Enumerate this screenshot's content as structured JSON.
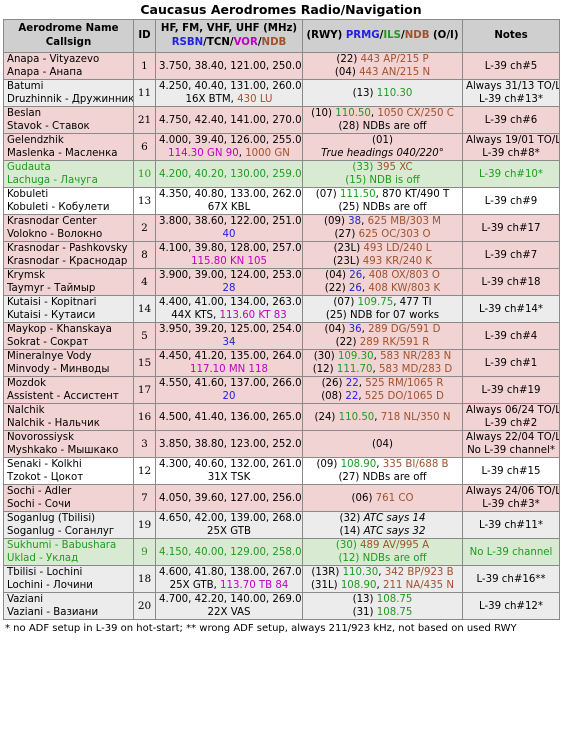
{
  "title": "Caucasus Aerodromes Radio/Navigation",
  "header": {
    "name_l1": "Aerodrome Name",
    "name_l2": "Callsign",
    "id": "ID",
    "freq_l1": "HF, FM, VHF, UHF (MHz)",
    "freq_rsbn": "RSBN",
    "freq_tcn": "TCN",
    "freq_vor": "VOR",
    "freq_ndb": "NDB",
    "nav_rwy": "(RWY)",
    "nav_prmg": "PRMG",
    "nav_ils": "ILS",
    "nav_ndb": "NDB",
    "nav_oi": "(O/I)",
    "notes": "Notes",
    "slash": "/"
  },
  "rows": [
    {
      "bg": "pink",
      "name1": "Anapa - Vityazevo",
      "name2": "Anapa - Анапа",
      "id": "1",
      "f1": [
        {
          "t": "3.750, 38.40, 121.00, 250.00"
        }
      ],
      "f2": [],
      "n1": [
        {
          "t": "(22) "
        },
        {
          "t": "443 AP/215 P",
          "c": "brown"
        }
      ],
      "n2": [
        {
          "t": "(04) "
        },
        {
          "t": "443 AN/215 N",
          "c": "brown"
        }
      ],
      "no1": "L-39 ch#5",
      "no2": ""
    },
    {
      "bg": "gray",
      "name1": "Batumi",
      "name2": "Druzhinnik - Дружинник",
      "id": "11",
      "f1": [
        {
          "t": "4.250, 40.40, 131.00, 260.00"
        }
      ],
      "f2": [
        {
          "t": "16X BTM, "
        },
        {
          "t": "430 LU",
          "c": "brown"
        }
      ],
      "n1": [
        {
          "t": "(13) "
        },
        {
          "t": "110.30",
          "c": "green"
        }
      ],
      "n2": [],
      "no1": "Always 31/13 TO/L",
      "no2": "L-39 ch#13*"
    },
    {
      "bg": "pink",
      "name1": "Beslan",
      "name2": "Stavok - Ставок",
      "id": "21",
      "f1": [
        {
          "t": "4.750, 42.40, 141.00, 270.00"
        }
      ],
      "f2": [],
      "n1": [
        {
          "t": "(10) "
        },
        {
          "t": "110.50",
          "c": "green"
        },
        {
          "t": ", "
        },
        {
          "t": "1050 CX/250 C",
          "c": "brown"
        }
      ],
      "n2": [
        {
          "t": "(28) NDBs are off"
        }
      ],
      "no1": "L-39 ch#6",
      "no2": ""
    },
    {
      "bg": "pink",
      "name1": "Gelendzhik",
      "name2": "Maslenka - Масленка",
      "id": "6",
      "f1": [
        {
          "t": "4.000, 39.40, 126.00, 255.00"
        }
      ],
      "f2": [
        {
          "t": "114.30 GN 90",
          "c": "magenta"
        },
        {
          "t": ", "
        },
        {
          "t": "1000 GN",
          "c": "brown"
        }
      ],
      "n1": [
        {
          "t": "(01)"
        }
      ],
      "n2": [
        {
          "t": "True headings 040/220°",
          "c": "italic"
        }
      ],
      "no1": "Always 19/01 TO/L",
      "no2": "L-39 ch#8*"
    },
    {
      "bg": "green",
      "name1": "Gudauta",
      "name2": "Lachuga - Лачуга",
      "id": "10",
      "f1": [
        {
          "t": "4.200, 40.20, 130.00, 259.00"
        }
      ],
      "f2": [],
      "n1": [
        {
          "t": "(33) "
        },
        {
          "t": "395 XC",
          "c": "brown"
        }
      ],
      "n2": [
        {
          "t": "(15) NDB is off"
        }
      ],
      "no1": "L-39 ch#10*",
      "no2": ""
    },
    {
      "bg": "white",
      "name1": "Kobuleti",
      "name2": "Kobuleti - Кобулети",
      "id": "13",
      "f1": [
        {
          "t": "4.350, 40.80, 133.00, 262.00"
        }
      ],
      "f2": [
        {
          "t": "67X KBL"
        }
      ],
      "n1": [
        {
          "t": "(07) "
        },
        {
          "t": "111.50",
          "c": "green"
        },
        {
          "t": ", 870 KT/490 T"
        }
      ],
      "n2": [
        {
          "t": "(25) NDBs are off"
        }
      ],
      "no1": "L-39 ch#9",
      "no2": ""
    },
    {
      "bg": "pink",
      "name1": "Krasnodar Center",
      "name2": "Volokno - Волокно",
      "id": "2",
      "f1": [
        {
          "t": "3.800, 38.60, 122.00, 251.00"
        }
      ],
      "f2": [
        {
          "t": "40",
          "c": "blue"
        }
      ],
      "n1": [
        {
          "t": "(09) "
        },
        {
          "t": "38",
          "c": "blue"
        },
        {
          "t": ", "
        },
        {
          "t": "625 MB/303 M",
          "c": "brown"
        }
      ],
      "n2": [
        {
          "t": "(27) "
        },
        {
          "t": "625 OC/303 O",
          "c": "brown"
        }
      ],
      "no1": "L-39 ch#17",
      "no2": ""
    },
    {
      "bg": "pink",
      "name1": "Krasnodar - Pashkovsky",
      "name2": "Krasnodar - Краснодар",
      "id": "8",
      "f1": [
        {
          "t": "4.100, 39.80, 128.00, 257.00"
        }
      ],
      "f2": [
        {
          "t": "115.80 KN 105",
          "c": "magenta"
        }
      ],
      "n1": [
        {
          "t": "(23L) "
        },
        {
          "t": "493 LD/240 L",
          "c": "brown"
        }
      ],
      "n2": [
        {
          "t": "(23L) "
        },
        {
          "t": "493 KR/240 K",
          "c": "brown"
        }
      ],
      "no1": "L-39 ch#7",
      "no2": ""
    },
    {
      "bg": "pink",
      "name1": "Krymsk",
      "name2": "Taymyr - Таймыр",
      "id": "4",
      "f1": [
        {
          "t": "3.900, 39.00, 124.00, 253.00"
        }
      ],
      "f2": [
        {
          "t": "28",
          "c": "blue"
        }
      ],
      "n1": [
        {
          "t": "(04) "
        },
        {
          "t": "26",
          "c": "blue"
        },
        {
          "t": ", "
        },
        {
          "t": "408 OX/803 O",
          "c": "brown"
        }
      ],
      "n2": [
        {
          "t": "(22) "
        },
        {
          "t": "26",
          "c": "blue"
        },
        {
          "t": ", "
        },
        {
          "t": "408 KW/803 K",
          "c": "brown"
        }
      ],
      "no1": "L-39 ch#18",
      "no2": ""
    },
    {
      "bg": "gray",
      "name1": "Kutaisi - Kopitnari",
      "name2": "Kutaisi - Кутаиси",
      "id": "14",
      "f1": [
        {
          "t": "4.400, 41.00, 134.00, 263.00"
        }
      ],
      "f2": [
        {
          "t": "44X KTS, "
        },
        {
          "t": "113.60 KT 83",
          "c": "magenta"
        }
      ],
      "n1": [
        {
          "t": "(07) "
        },
        {
          "t": "109.75",
          "c": "green"
        },
        {
          "t": ", 477 TI"
        }
      ],
      "n2": [
        {
          "t": "(25) NDB for 07 works"
        }
      ],
      "no1": "L-39 ch#14*",
      "no2": ""
    },
    {
      "bg": "pink",
      "name1": "Maykop - Khanskaya",
      "name2": "Sokrat - Сократ",
      "id": "5",
      "f1": [
        {
          "t": "3.950, 39.20, 125.00, 254.00"
        }
      ],
      "f2": [
        {
          "t": "34",
          "c": "blue"
        }
      ],
      "n1": [
        {
          "t": "(04) "
        },
        {
          "t": "36",
          "c": "blue"
        },
        {
          "t": ", "
        },
        {
          "t": "289 DG/591 D",
          "c": "brown"
        }
      ],
      "n2": [
        {
          "t": "(22) "
        },
        {
          "t": "289 RK/591 R",
          "c": "brown"
        }
      ],
      "no1": "L-39 ch#4",
      "no2": ""
    },
    {
      "bg": "pink",
      "name1": "Mineralnye Vody",
      "name2": "Minvody - Минводы",
      "id": "15",
      "f1": [
        {
          "t": "4.450, 41.20, 135.00, 264.00"
        }
      ],
      "f2": [
        {
          "t": "117.10 MN 118",
          "c": "magenta"
        }
      ],
      "n1": [
        {
          "t": "(30) "
        },
        {
          "t": "109.30",
          "c": "green"
        },
        {
          "t": ", "
        },
        {
          "t": "583 NR/283 N",
          "c": "brown"
        }
      ],
      "n2": [
        {
          "t": "(12) "
        },
        {
          "t": "111.70",
          "c": "green"
        },
        {
          "t": ", "
        },
        {
          "t": "583 MD/283 D",
          "c": "brown"
        }
      ],
      "no1": "L-39 ch#1",
      "no2": ""
    },
    {
      "bg": "pink",
      "name1": "Mozdok",
      "name2": "Assistent - Ассистент",
      "id": "17",
      "f1": [
        {
          "t": "4.550, 41.60, 137.00, 266.00"
        }
      ],
      "f2": [
        {
          "t": "20",
          "c": "blue"
        }
      ],
      "n1": [
        {
          "t": "(26) "
        },
        {
          "t": "22",
          "c": "blue"
        },
        {
          "t": ", "
        },
        {
          "t": "525 RM/1065 R",
          "c": "brown"
        }
      ],
      "n2": [
        {
          "t": "(08) "
        },
        {
          "t": "22",
          "c": "blue"
        },
        {
          "t": ", "
        },
        {
          "t": "525 DO/1065 D",
          "c": "brown"
        }
      ],
      "no1": "L-39 ch#19",
      "no2": ""
    },
    {
      "bg": "pink",
      "name1": "Nalchik",
      "name2": "Nalchik - Нальчик",
      "id": "16",
      "f1": [
        {
          "t": "4.500, 41.40, 136.00, 265.00"
        }
      ],
      "f2": [],
      "n1": [
        {
          "t": "(24) "
        },
        {
          "t": "110.50",
          "c": "green"
        },
        {
          "t": ", "
        },
        {
          "t": "718 NL/350 N",
          "c": "brown"
        }
      ],
      "n2": [],
      "no1": "Always 06/24 TO/L",
      "no2": "L-39 ch#2"
    },
    {
      "bg": "pink",
      "name1": "Novorossiysk",
      "name2": "Myshkako - Мышкако",
      "id": "3",
      "f1": [
        {
          "t": "3.850, 38.80, 123.00, 252.00"
        }
      ],
      "f2": [],
      "n1": [
        {
          "t": "(04)"
        }
      ],
      "n2": [],
      "no1": "Always 22/04 TO/L",
      "no2": "No L-39 channel*"
    },
    {
      "bg": "white",
      "name1": "Senaki - Kolkhi",
      "name2": "Tzokot - Цокот",
      "id": "12",
      "f1": [
        {
          "t": "4.300, 40.60, 132.00, 261.00"
        }
      ],
      "f2": [
        {
          "t": "31X TSK"
        }
      ],
      "n1": [
        {
          "t": "(09) "
        },
        {
          "t": "108.90",
          "c": "green"
        },
        {
          "t": ", "
        },
        {
          "t": "335 BI/688 B",
          "c": "brown"
        }
      ],
      "n2": [
        {
          "t": "(27) NDBs are off"
        }
      ],
      "no1": "L-39 ch#15",
      "no2": ""
    },
    {
      "bg": "pink",
      "name1": "Sochi - Adler",
      "name2": "Sochi - Сочи",
      "id": "7",
      "f1": [
        {
          "t": "4.050, 39.60, 127.00, 256.00"
        }
      ],
      "f2": [],
      "n1": [
        {
          "t": "(06) "
        },
        {
          "t": "761 CO",
          "c": "brown"
        }
      ],
      "n2": [],
      "no1": "Always 24/06 TO/L",
      "no2": "L-39 ch#3*"
    },
    {
      "bg": "gray",
      "name1": "Soganlug (Tbilisi)",
      "name2": "Soganlug - Соганлуг",
      "id": "19",
      "f1": [
        {
          "t": "4.650, 42.00, 139.00, 268.00"
        }
      ],
      "f2": [
        {
          "t": "25X GTB"
        }
      ],
      "n1": [
        {
          "t": "(32) "
        },
        {
          "t": "ATC says 14",
          "c": "italic"
        }
      ],
      "n2": [
        {
          "t": "(14) "
        },
        {
          "t": "ATC says 32",
          "c": "italic"
        }
      ],
      "no1": "L-39 ch#11*",
      "no2": ""
    },
    {
      "bg": "green",
      "name1": "Sukhumi - Babushara",
      "name2": "Uklad - Уклад",
      "id": "9",
      "f1": [
        {
          "t": "4.150, 40.00, 129.00, 258.00"
        }
      ],
      "f2": [],
      "n1": [
        {
          "t": "(30) "
        },
        {
          "t": "489 AV/995 A",
          "c": "brown"
        }
      ],
      "n2": [
        {
          "t": "(12) NDBs are off"
        }
      ],
      "no1": "No L-39 channel",
      "no2": ""
    },
    {
      "bg": "gray",
      "name1": "Tbilisi - Lochini",
      "name2": "Lochini - Лочини",
      "id": "18",
      "f1": [
        {
          "t": "4.600, 41.80, 138.00, 267.00"
        }
      ],
      "f2": [
        {
          "t": "25X GTB, "
        },
        {
          "t": "113.70 TB 84",
          "c": "magenta"
        }
      ],
      "n1": [
        {
          "t": "(13R) "
        },
        {
          "t": "110.30",
          "c": "green"
        },
        {
          "t": ", "
        },
        {
          "t": "342 BP/923 B",
          "c": "brown"
        }
      ],
      "n2": [
        {
          "t": "(31L) "
        },
        {
          "t": "108.90",
          "c": "green"
        },
        {
          "t": ", "
        },
        {
          "t": "211 NA/435 N",
          "c": "brown"
        }
      ],
      "no1": "L-39 ch#16**",
      "no2": ""
    },
    {
      "bg": "gray",
      "name1": "Vaziani",
      "name2": "Vaziani - Вазиани",
      "id": "20",
      "f1": [
        {
          "t": "4.700, 42.20, 140.00, 269.00"
        }
      ],
      "f2": [
        {
          "t": "22X VAS"
        }
      ],
      "n1": [
        {
          "t": "(13) "
        },
        {
          "t": "108.75",
          "c": "green"
        }
      ],
      "n2": [
        {
          "t": "(31) "
        },
        {
          "t": "108.75",
          "c": "green"
        }
      ],
      "no1": "L-39 ch#12*",
      "no2": ""
    }
  ],
  "footnote": "* no ADF setup in L-39 on hot-start; ** wrong ADF setup, always 211/923 kHz, not based on used RWY",
  "colors": {
    "pink": "#f2d3d3",
    "green_bg": "#d8ebd2",
    "gray": "#ececec",
    "blue": "#2222dd",
    "green": "#1f9a1f",
    "magenta": "#c000c0",
    "brown": "#a0522d",
    "header": "#cfcfcf"
  }
}
